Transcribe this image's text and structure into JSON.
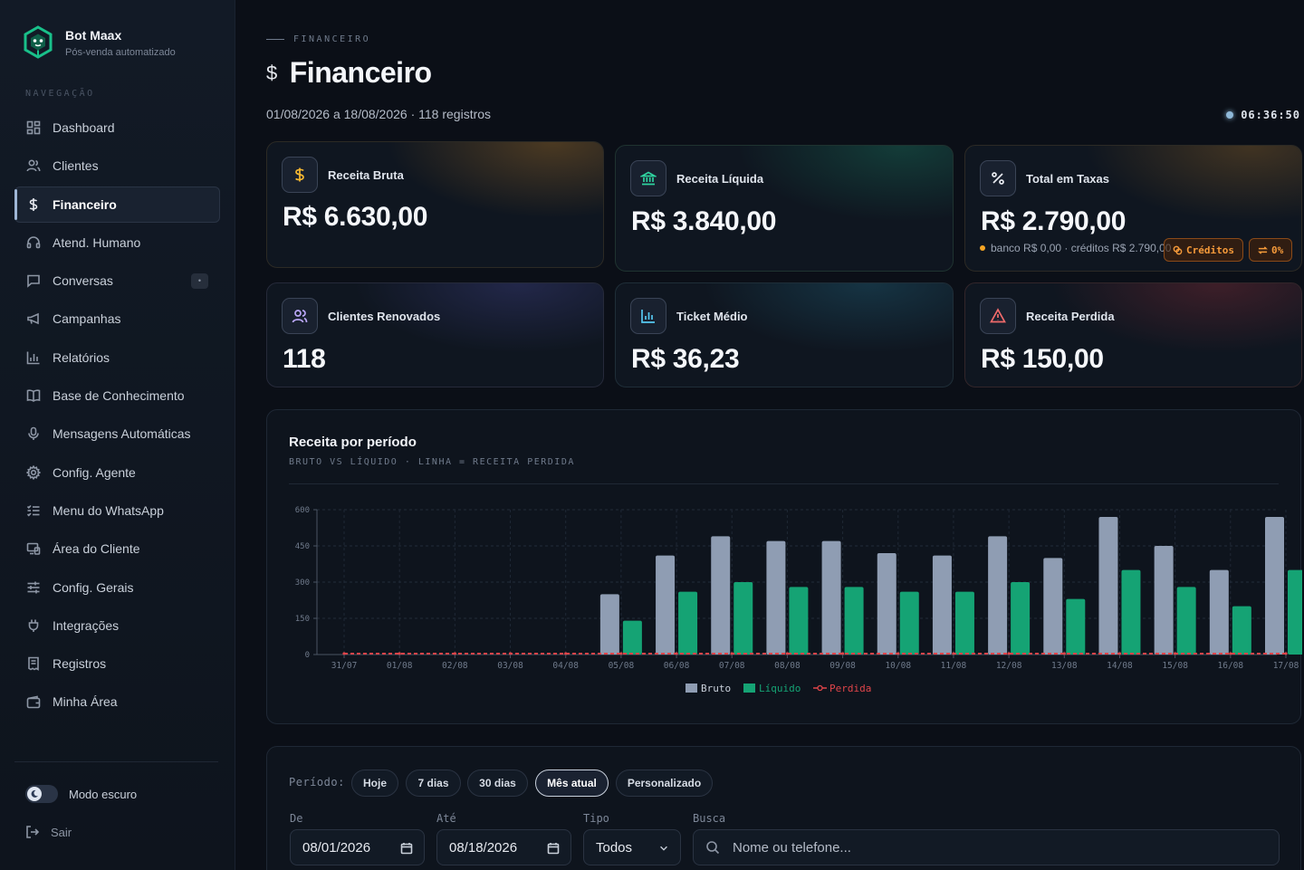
{
  "app": {
    "name": "Bot Maax",
    "tagline": "Pós-venda automatizado"
  },
  "sidebar": {
    "section_label": "NAVEGAÇÃO",
    "items": [
      {
        "label": "Dashboard",
        "icon": "grid-icon"
      },
      {
        "label": "Clientes",
        "icon": "users-icon"
      },
      {
        "label": "Financeiro",
        "icon": "dollar-icon",
        "active": true
      },
      {
        "label": "Atend. Humano",
        "icon": "headset-icon"
      },
      {
        "label": "Conversas",
        "icon": "chat-icon",
        "badge": "•"
      },
      {
        "label": "Campanhas",
        "icon": "megaphone-icon"
      },
      {
        "label": "Relatórios",
        "icon": "bar-chart-icon"
      },
      {
        "label": "Base de Conhecimento",
        "icon": "book-icon"
      },
      {
        "label": "Mensagens Automáticas",
        "icon": "mic-icon"
      },
      {
        "label": "Config. Agente",
        "icon": "gear-icon"
      },
      {
        "label": "Menu do WhatsApp",
        "icon": "list-check-icon"
      },
      {
        "label": "Área do Cliente",
        "icon": "devices-icon"
      },
      {
        "label": "Config. Gerais",
        "icon": "sliders-icon"
      },
      {
        "label": "Integrações",
        "icon": "plug-icon"
      },
      {
        "label": "Registros",
        "icon": "receipt-icon"
      },
      {
        "label": "Minha Área",
        "icon": "wallet-icon"
      }
    ],
    "dark_mode_label": "Modo escuro",
    "logout_label": "Sair"
  },
  "header": {
    "breadcrumb": "FINANCEIRO",
    "title": "Financeiro",
    "title_icon": "$",
    "subtitle": "01/08/2026 a 18/08/2026 · 118 registros",
    "clock": "06:36:50"
  },
  "cards": [
    {
      "label": "Receita Bruta",
      "value": "R$ 6.630,00",
      "icon": "dollar-icon",
      "accent": "#f5b731"
    },
    {
      "label": "Receita Líquida",
      "value": "R$ 3.840,00",
      "icon": "bank-icon",
      "accent": "#2fd3a0"
    },
    {
      "label": "Total em Taxas",
      "value": "R$ 2.790,00",
      "icon": "percent-icon",
      "accent": "#e6e9ef",
      "footnote": "banco R$ 0,00 · créditos R$ 2.790,00",
      "buttons": [
        "Créditos",
        "0%"
      ]
    },
    {
      "label": "Clientes Renovados",
      "value": "118",
      "icon": "users-icon",
      "accent": "#b9a6f5"
    },
    {
      "label": "Ticket Médio",
      "value": "R$ 36,23",
      "icon": "bar-chart-icon",
      "accent": "#55c8f0"
    },
    {
      "label": "Receita Perdida",
      "value": "R$ 150,00",
      "icon": "alert-icon",
      "accent": "#f26b6b"
    }
  ],
  "chart_panel": {
    "title": "Receita por período",
    "subtitle": "BRUTO VS LÍQUIDO · LINHA = RECEITA PERDIDA"
  },
  "chart_data": {
    "type": "bar",
    "categories": [
      "31/07",
      "01/08",
      "02/08",
      "03/08",
      "04/08",
      "05/08",
      "06/08",
      "07/08",
      "08/08",
      "09/08",
      "10/08",
      "11/08",
      "12/08",
      "13/08",
      "14/08",
      "15/08",
      "16/08",
      "17/08"
    ],
    "series": [
      {
        "name": "Bruto",
        "type": "bar",
        "color": "#8f9db3",
        "values": [
          0,
          0,
          0,
          0,
          0,
          250,
          410,
          490,
          470,
          470,
          420,
          410,
          490,
          400,
          570,
          450,
          350,
          570
        ]
      },
      {
        "name": "Líquido",
        "type": "bar",
        "color": "#15a374",
        "values": [
          0,
          0,
          0,
          0,
          0,
          140,
          260,
          300,
          280,
          280,
          260,
          260,
          300,
          230,
          350,
          280,
          200,
          350
        ]
      },
      {
        "name": "Perdida",
        "type": "line",
        "color": "#e0454a",
        "values": [
          0,
          0,
          0,
          0,
          0,
          0,
          0,
          0,
          0,
          0,
          0,
          0,
          0,
          0,
          0,
          0,
          0,
          0
        ]
      }
    ],
    "yticks": [
      0,
      150,
      300,
      450,
      600
    ],
    "ylim": [
      0,
      600
    ],
    "grid": true,
    "legend": "bottom-center"
  },
  "filters": {
    "period_label": "Período:",
    "period_options": [
      "Hoje",
      "7 dias",
      "30 dias",
      "Mês atual",
      "Personalizado"
    ],
    "period_selected": "Mês atual",
    "from_label": "De",
    "from_value": "08/01/2026",
    "to_label": "Até",
    "to_value": "08/18/2026",
    "type_label": "Tipo",
    "type_value": "Todos",
    "search_label": "Busca",
    "search_placeholder": "Nome ou telefone..."
  }
}
